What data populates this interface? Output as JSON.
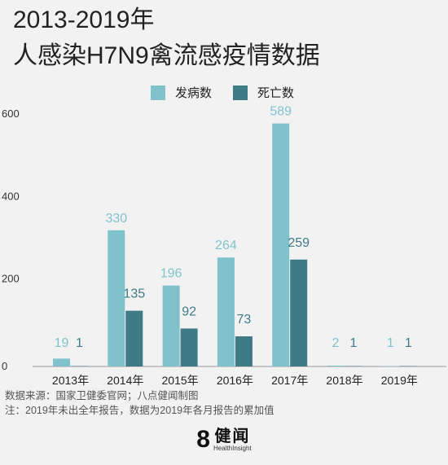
{
  "header": {
    "title_line1": "2013-2019年",
    "title_line2": "人感染H7N9禽流感疫情数据"
  },
  "colors": {
    "series1": "#80c2cc",
    "series2": "#3e7b86",
    "background": "#f2f2f2"
  },
  "chart_data": {
    "type": "bar",
    "categories": [
      "2013年",
      "2014年",
      "2015年",
      "2016年",
      "2017年",
      "2018年",
      "2019年"
    ],
    "series": [
      {
        "name": "发病数",
        "values": [
          19,
          330,
          196,
          264,
          589,
          2,
          1
        ]
      },
      {
        "name": "死亡数",
        "values": [
          1,
          135,
          92,
          73,
          259,
          1,
          1
        ]
      }
    ],
    "ylim": [
      0,
      600
    ],
    "yticks": [
      0,
      200,
      400,
      600
    ],
    "legend_position": "top-center",
    "grid": false
  },
  "footer": {
    "source": "数据来源：国家卫健委官网；八点健闻制图",
    "note": "注：2019年未出全年报告，数据为2019年各月报告的累加值"
  },
  "logo": {
    "number": "8",
    "name_cn": "健闻",
    "name_en": "HealthInsight"
  }
}
